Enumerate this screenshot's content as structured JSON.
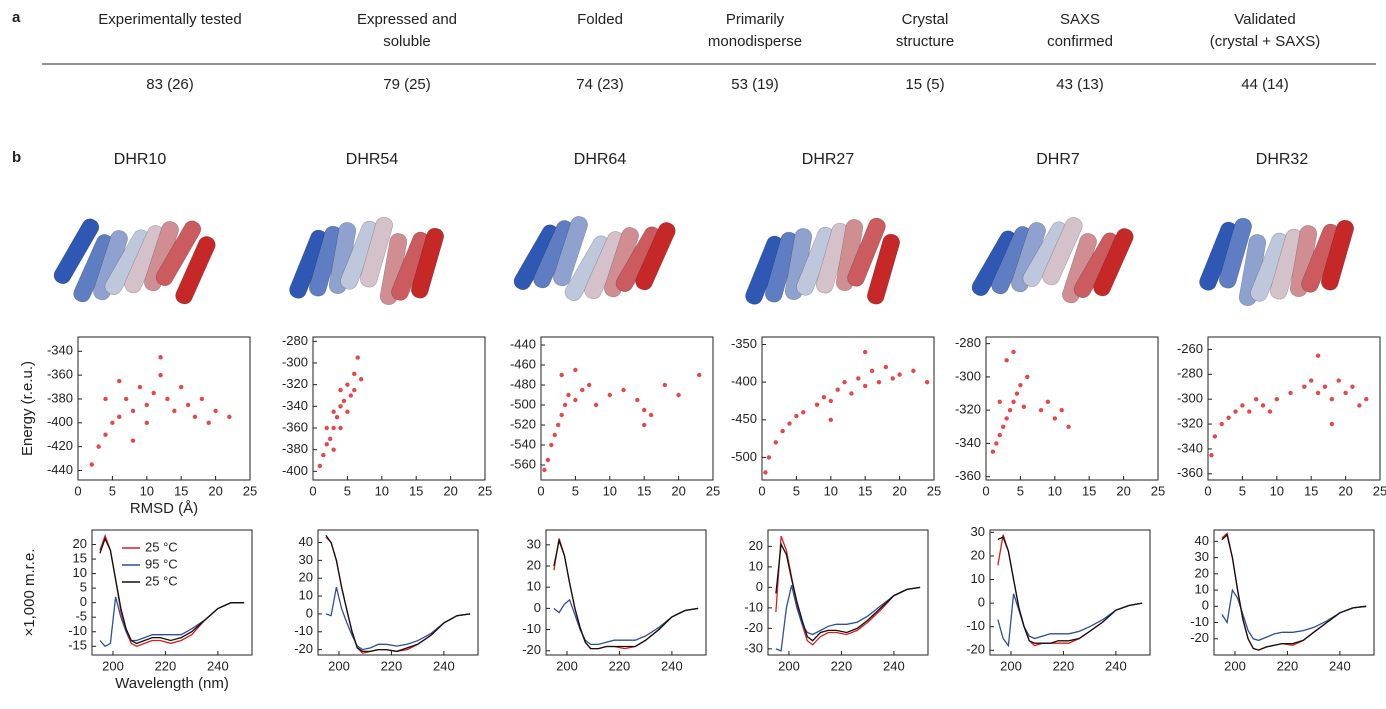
{
  "panel_a": {
    "label": "a",
    "headers": [
      [
        "Experimentally tested"
      ],
      [
        "Expressed and",
        "soluble"
      ],
      [
        "Folded"
      ],
      [
        "Primarily",
        "monodisperse"
      ],
      [
        "Crystal",
        "structure"
      ],
      [
        "SAXS",
        "confirmed"
      ],
      [
        "Validated",
        "(crystal + SAXS)"
      ]
    ],
    "values": [
      "83 (26)",
      "79 (25)",
      "74 (23)",
      "53 (19)",
      "15 (5)",
      "43 (13)",
      "44 (14)"
    ]
  },
  "panel_b": {
    "label": "b",
    "titles": [
      "DHR10",
      "DHR54",
      "DHR64",
      "DHR27",
      "DHR7",
      "DHR32"
    ]
  },
  "chart_data": [
    {
      "type": "scatter",
      "xlabel": "RMSD (Å)",
      "ylabel": "Energy (r.e.u.)",
      "color": "#e8474a",
      "xlim": [
        0,
        25
      ],
      "ylim": [
        -448,
        -328
      ],
      "xticks": [
        0,
        5,
        10,
        15,
        20,
        25
      ],
      "yticks": [
        -340,
        -360,
        -380,
        -400,
        -420,
        -440
      ],
      "x": [
        2,
        3,
        4,
        5,
        6,
        7,
        8,
        9,
        10,
        11,
        12,
        13,
        14,
        15,
        16,
        17,
        18,
        19,
        20,
        22,
        4,
        8,
        12,
        6,
        10
      ],
      "values": [
        -435,
        -420,
        -410,
        -400,
        -395,
        -380,
        -390,
        -370,
        -385,
        -375,
        -360,
        -380,
        -390,
        -370,
        -385,
        -395,
        -380,
        -400,
        -390,
        -395,
        -380,
        -415,
        -345,
        -365,
        -400
      ]
    },
    {
      "type": "scatter",
      "color": "#e8474a",
      "xlim": [
        0,
        25
      ],
      "ylim": [
        -408,
        -276
      ],
      "xticks": [
        0,
        5,
        10,
        15,
        20,
        25
      ],
      "yticks": [
        -280,
        -300,
        -320,
        -340,
        -360,
        -380,
        -400
      ],
      "x": [
        1,
        1.5,
        2,
        2.5,
        3,
        3,
        3.5,
        4,
        4,
        4.5,
        5,
        5,
        5.5,
        6,
        6,
        6.5,
        7,
        2,
        3,
        4
      ],
      "values": [
        -395,
        -385,
        -375,
        -370,
        -360,
        -345,
        -350,
        -340,
        -325,
        -335,
        -320,
        -345,
        -330,
        -310,
        -325,
        -295,
        -315,
        -360,
        -380,
        -360
      ]
    },
    {
      "type": "scatter",
      "color": "#e8474a",
      "xlim": [
        0,
        25
      ],
      "ylim": [
        -575,
        -432
      ],
      "xticks": [
        0,
        5,
        10,
        15,
        20,
        25
      ],
      "yticks": [
        -440,
        -460,
        -480,
        -500,
        -520,
        -540,
        -560
      ],
      "x": [
        0.5,
        1,
        1.5,
        2,
        2.5,
        3,
        3.5,
        4,
        5,
        6,
        7,
        8,
        10,
        12,
        14,
        15,
        16,
        18,
        20,
        23,
        3,
        5,
        15
      ],
      "values": [
        -565,
        -555,
        -540,
        -530,
        -520,
        -510,
        -500,
        -490,
        -495,
        -485,
        -480,
        -500,
        -490,
        -485,
        -495,
        -505,
        -510,
        -480,
        -490,
        -470,
        -470,
        -465,
        -520
      ]
    },
    {
      "type": "scatter",
      "color": "#e8474a",
      "xlim": [
        0,
        25
      ],
      "ylim": [
        -530,
        -340
      ],
      "xticks": [
        0,
        5,
        10,
        15,
        20,
        25
      ],
      "yticks": [
        -350,
        -400,
        -450,
        -500
      ],
      "x": [
        0.5,
        1,
        2,
        3,
        4,
        5,
        6,
        8,
        9,
        10,
        11,
        12,
        13,
        14,
        15,
        16,
        17,
        18,
        19,
        20,
        22,
        24,
        10,
        15
      ],
      "values": [
        -520,
        -500,
        -480,
        -465,
        -455,
        -445,
        -440,
        -430,
        -420,
        -425,
        -410,
        -400,
        -415,
        -395,
        -405,
        -385,
        -400,
        -380,
        -395,
        -390,
        -385,
        -400,
        -450,
        -360
      ]
    },
    {
      "type": "scatter",
      "color": "#e8474a",
      "xlim": [
        0,
        25
      ],
      "ylim": [
        -362,
        -276
      ],
      "xticks": [
        0,
        5,
        10,
        15,
        20,
        25
      ],
      "yticks": [
        -280,
        -300,
        -320,
        -340,
        -360
      ],
      "x": [
        1,
        1.5,
        2,
        2.5,
        3,
        3.5,
        4,
        4.5,
        5,
        5.5,
        6,
        8,
        9,
        10,
        11,
        12,
        3,
        2,
        4
      ],
      "values": [
        -345,
        -340,
        -335,
        -330,
        -325,
        -320,
        -315,
        -310,
        -305,
        -318,
        -300,
        -320,
        -315,
        -325,
        -320,
        -330,
        -290,
        -315,
        -285
      ]
    },
    {
      "type": "scatter",
      "color": "#e8474a",
      "xlim": [
        0,
        25
      ],
      "ylim": [
        -365,
        -250
      ],
      "xticks": [
        0,
        5,
        10,
        15,
        20,
        25
      ],
      "yticks": [
        -260,
        -280,
        -300,
        -320,
        -340,
        -360
      ],
      "x": [
        0.5,
        1,
        2,
        3,
        4,
        5,
        6,
        7,
        8,
        9,
        10,
        12,
        14,
        15,
        16,
        17,
        18,
        19,
        20,
        21,
        22,
        23,
        16,
        18
      ],
      "values": [
        -345,
        -330,
        -320,
        -315,
        -310,
        -305,
        -310,
        -300,
        -305,
        -310,
        -300,
        -295,
        -290,
        -285,
        -295,
        -290,
        -300,
        -285,
        -295,
        -290,
        -305,
        -300,
        -265,
        -320
      ]
    },
    {
      "type": "line",
      "xlabel": "Wavelength (nm)",
      "ylabel": "×1,000 m.r.e.",
      "xlim": [
        192,
        253
      ],
      "ylim": [
        -18,
        25
      ],
      "xticks": [
        200,
        220,
        240
      ],
      "yticks": [
        20,
        15,
        10,
        5,
        0,
        -5,
        -10,
        -15
      ],
      "x": [
        195,
        197,
        199,
        201,
        203,
        205,
        207,
        209,
        212,
        215,
        218,
        222,
        226,
        230,
        235,
        240,
        245,
        250
      ],
      "series": [
        {
          "name": "25 °C",
          "color": "#e31a1c",
          "values": [
            18,
            23,
            18,
            8,
            -3,
            -10,
            -14,
            -15,
            -14,
            -13,
            -13,
            -14,
            -13,
            -11,
            -6,
            -2,
            0,
            0
          ]
        },
        {
          "name": "95 °C",
          "color": "#2c4f9e",
          "values": [
            -13,
            -15,
            -14,
            2,
            -5,
            -10,
            -13,
            -13,
            -12,
            -11,
            -11,
            -11,
            -11,
            -9,
            -6,
            -2,
            0,
            0
          ]
        },
        {
          "name": "25 °C",
          "color": "#111111",
          "values": [
            17,
            22,
            18,
            8,
            -2,
            -9,
            -13,
            -14,
            -13,
            -12,
            -12,
            -13,
            -12,
            -10,
            -6,
            -2,
            0,
            0
          ]
        }
      ]
    },
    {
      "type": "line",
      "xlim": [
        192,
        253
      ],
      "ylim": [
        -23,
        47
      ],
      "xticks": [
        200,
        220,
        240
      ],
      "yticks": [
        40,
        30,
        20,
        10,
        0,
        -10,
        -20
      ],
      "x": [
        195,
        197,
        199,
        201,
        203,
        205,
        207,
        209,
        212,
        215,
        218,
        222,
        226,
        230,
        235,
        240,
        245,
        250
      ],
      "series": [
        {
          "color": "#e31a1c",
          "values": [
            43,
            40,
            30,
            15,
            2,
            -10,
            -19,
            -22,
            -21,
            -20,
            -20,
            -21,
            -20,
            -17,
            -12,
            -5,
            -1,
            0
          ]
        },
        {
          "color": "#2c4f9e",
          "values": [
            0,
            -1,
            15,
            3,
            -5,
            -12,
            -18,
            -20,
            -19,
            -17,
            -17,
            -18,
            -17,
            -15,
            -11,
            -5,
            -1,
            0
          ]
        },
        {
          "color": "#111111",
          "values": [
            44,
            40,
            30,
            15,
            2,
            -10,
            -19,
            -21,
            -21,
            -20,
            -20,
            -21,
            -19,
            -17,
            -12,
            -5,
            -1,
            0
          ]
        }
      ]
    },
    {
      "type": "line",
      "xlim": [
        192,
        253
      ],
      "ylim": [
        -22,
        37
      ],
      "xticks": [
        200,
        220,
        240
      ],
      "yticks": [
        30,
        20,
        10,
        0,
        -10,
        -20
      ],
      "x": [
        195,
        197,
        199,
        201,
        203,
        205,
        207,
        209,
        212,
        215,
        218,
        222,
        226,
        230,
        235,
        240,
        245,
        250
      ],
      "series": [
        {
          "color": "#e31a1c",
          "values": [
            18,
            33,
            25,
            12,
            0,
            -9,
            -16,
            -19,
            -19,
            -18,
            -18,
            -19,
            -18,
            -15,
            -10,
            -4,
            -1,
            0
          ]
        },
        {
          "color": "#2c4f9e",
          "values": [
            0,
            -2,
            2,
            4,
            -3,
            -10,
            -15,
            -17,
            -17,
            -16,
            -15,
            -15,
            -15,
            -13,
            -9,
            -4,
            -1,
            0
          ]
        },
        {
          "color": "#111111",
          "values": [
            20,
            32,
            25,
            12,
            0,
            -9,
            -16,
            -19,
            -19,
            -18,
            -18,
            -18,
            -18,
            -15,
            -10,
            -4,
            -1,
            0
          ]
        }
      ]
    },
    {
      "type": "line",
      "xlim": [
        192,
        253
      ],
      "ylim": [
        -33,
        28
      ],
      "xticks": [
        200,
        220,
        240
      ],
      "yticks": [
        20,
        10,
        0,
        -10,
        -20,
        -30
      ],
      "x": [
        195,
        197,
        199,
        201,
        203,
        205,
        207,
        209,
        212,
        215,
        218,
        222,
        226,
        230,
        235,
        240,
        245,
        250
      ],
      "series": [
        {
          "color": "#e31a1c",
          "values": [
            -12,
            25,
            18,
            5,
            -8,
            -18,
            -26,
            -28,
            -24,
            -22,
            -22,
            -23,
            -21,
            -17,
            -11,
            -4,
            -1,
            0
          ]
        },
        {
          "color": "#2c4f9e",
          "values": [
            -30,
            -31,
            -10,
            1,
            -10,
            -18,
            -22,
            -23,
            -21,
            -19,
            -18,
            -18,
            -17,
            -14,
            -9,
            -4,
            -1,
            0
          ]
        },
        {
          "color": "#111111",
          "values": [
            -3,
            21,
            16,
            4,
            -7,
            -16,
            -24,
            -26,
            -22,
            -21,
            -21,
            -22,
            -20,
            -16,
            -10,
            -4,
            -1,
            0
          ]
        }
      ]
    },
    {
      "type": "line",
      "xlim": [
        192,
        253
      ],
      "ylim": [
        -22,
        31
      ],
      "xticks": [
        200,
        220,
        240
      ],
      "yticks": [
        30,
        20,
        10,
        0,
        -10,
        -20
      ],
      "x": [
        195,
        197,
        199,
        201,
        203,
        205,
        207,
        209,
        212,
        215,
        218,
        222,
        226,
        230,
        235,
        240,
        245,
        250
      ],
      "series": [
        {
          "color": "#e31a1c",
          "values": [
            16,
            29,
            22,
            10,
            -2,
            -10,
            -16,
            -18,
            -17,
            -17,
            -17,
            -17,
            -15,
            -12,
            -8,
            -3,
            -1,
            0
          ]
        },
        {
          "color": "#2c4f9e",
          "values": [
            -7,
            -15,
            -18,
            4,
            -3,
            -10,
            -14,
            -15,
            -14,
            -13,
            -13,
            -13,
            -12,
            -10,
            -7,
            -3,
            -1,
            0
          ]
        },
        {
          "color": "#111111",
          "values": [
            27,
            28,
            22,
            10,
            -2,
            -10,
            -16,
            -17,
            -17,
            -17,
            -16,
            -16,
            -15,
            -12,
            -8,
            -3,
            -1,
            0
          ]
        }
      ]
    },
    {
      "type": "line",
      "xlim": [
        192,
        253
      ],
      "ylim": [
        -30,
        47
      ],
      "xticks": [
        200,
        220,
        240
      ],
      "yticks": [
        40,
        30,
        20,
        10,
        0,
        -10,
        -20
      ],
      "x": [
        195,
        197,
        199,
        201,
        203,
        205,
        207,
        209,
        212,
        215,
        218,
        222,
        226,
        230,
        235,
        240,
        245,
        250
      ],
      "series": [
        {
          "color": "#e31a1c",
          "values": [
            42,
            45,
            30,
            10,
            -8,
            -20,
            -26,
            -27,
            -25,
            -24,
            -23,
            -24,
            -21,
            -16,
            -10,
            -4,
            -1,
            0
          ]
        },
        {
          "color": "#2c4f9e",
          "values": [
            -5,
            -10,
            10,
            5,
            -5,
            -15,
            -20,
            -21,
            -19,
            -17,
            -16,
            -16,
            -15,
            -13,
            -9,
            -4,
            -1,
            0
          ]
        },
        {
          "color": "#111111",
          "values": [
            41,
            44,
            30,
            10,
            -8,
            -20,
            -26,
            -27,
            -25,
            -24,
            -23,
            -23,
            -21,
            -16,
            -10,
            -4,
            -1,
            0
          ]
        }
      ]
    }
  ]
}
